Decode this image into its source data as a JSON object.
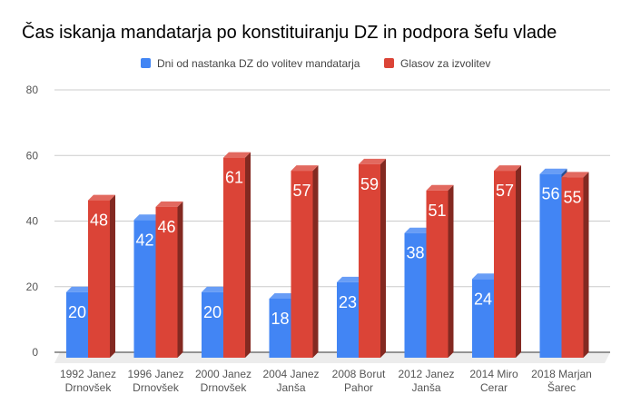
{
  "chart_data": {
    "type": "bar",
    "title": "Čas iskanja mandatarja po konstituiranju DZ in podpora šefu vlade",
    "categories": [
      [
        "1992 Janez",
        "Drnovšek"
      ],
      [
        "1996 Janez",
        "Drnovšek"
      ],
      [
        "2000 Janez",
        "Drnovšek"
      ],
      [
        "2004 Janez",
        "Janša"
      ],
      [
        "2008 Borut",
        "Pahor"
      ],
      [
        "2012 Janez",
        "Janša"
      ],
      [
        "2014 Miro",
        "Cerar"
      ],
      [
        "2018 Marjan",
        "Šarec"
      ]
    ],
    "series": [
      {
        "name": "Dni od nastanka DZ do volitev mandatarja",
        "color": "#4285f4",
        "values": [
          20,
          42,
          20,
          18,
          23,
          38,
          24,
          56
        ]
      },
      {
        "name": "Glasov za izvolitev",
        "color": "#db4437",
        "values": [
          48,
          46,
          61,
          57,
          59,
          51,
          57,
          55
        ]
      }
    ],
    "ylim": [
      0,
      80
    ],
    "yticks": [
      0,
      20,
      40,
      60,
      80
    ],
    "grid": true,
    "legend": "top",
    "style": "3d"
  }
}
